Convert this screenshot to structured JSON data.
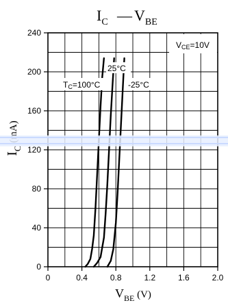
{
  "chart_data": {
    "type": "line",
    "title": {
      "main": "I",
      "main_sub": "C",
      "dash": "—",
      "right": "V",
      "right_sub": "BE"
    },
    "xlabel": {
      "main": "V",
      "sub": "BE",
      "unit": "(V)"
    },
    "ylabel": {
      "main": "I",
      "sub": "C",
      "unit": "(mA)"
    },
    "xlim": [
      0,
      2.0
    ],
    "ylim": [
      0,
      240
    ],
    "x_ticks": [
      0,
      0.4,
      0.8,
      1.2,
      1.6,
      2.0
    ],
    "x_tick_labels": [
      "0",
      "0.4",
      "0.8",
      "1.2",
      "1.6",
      "2.0"
    ],
    "y_ticks": [
      0,
      40,
      80,
      120,
      160,
      200,
      240
    ],
    "y_tick_labels": [
      "0",
      "40",
      "80",
      "120",
      "160",
      "200",
      "240"
    ],
    "grid": true,
    "condition": "VCE=10V",
    "series": [
      {
        "name": "TC=100°C",
        "x": [
          0.44,
          0.47,
          0.5,
          0.52,
          0.54,
          0.56,
          0.58,
          0.6,
          0.62,
          0.64,
          0.66
        ],
        "y": [
          0,
          3,
          8,
          18,
          32,
          60,
          95,
          130,
          165,
          195,
          214
        ]
      },
      {
        "name": "25°C",
        "x": [
          0.54,
          0.58,
          0.62,
          0.66,
          0.68,
          0.7,
          0.72,
          0.74,
          0.76,
          0.78
        ],
        "y": [
          0,
          4,
          10,
          30,
          55,
          85,
          120,
          155,
          185,
          214
        ]
      },
      {
        "name": "-25°C",
        "x": [
          0.7,
          0.74,
          0.77,
          0.8,
          0.82,
          0.84,
          0.86,
          0.88,
          0.9
        ],
        "y": [
          0,
          6,
          18,
          45,
          75,
          110,
          145,
          180,
          214
        ]
      }
    ],
    "annotations": [
      {
        "name": "VCE=10V",
        "text": "VCE=10V"
      },
      {
        "name": "TC=100°C",
        "text": "TC=100°C"
      },
      {
        "name": "25°C",
        "text": "25°C"
      },
      {
        "name": "-25°C",
        "text": "-25°C"
      }
    ]
  }
}
